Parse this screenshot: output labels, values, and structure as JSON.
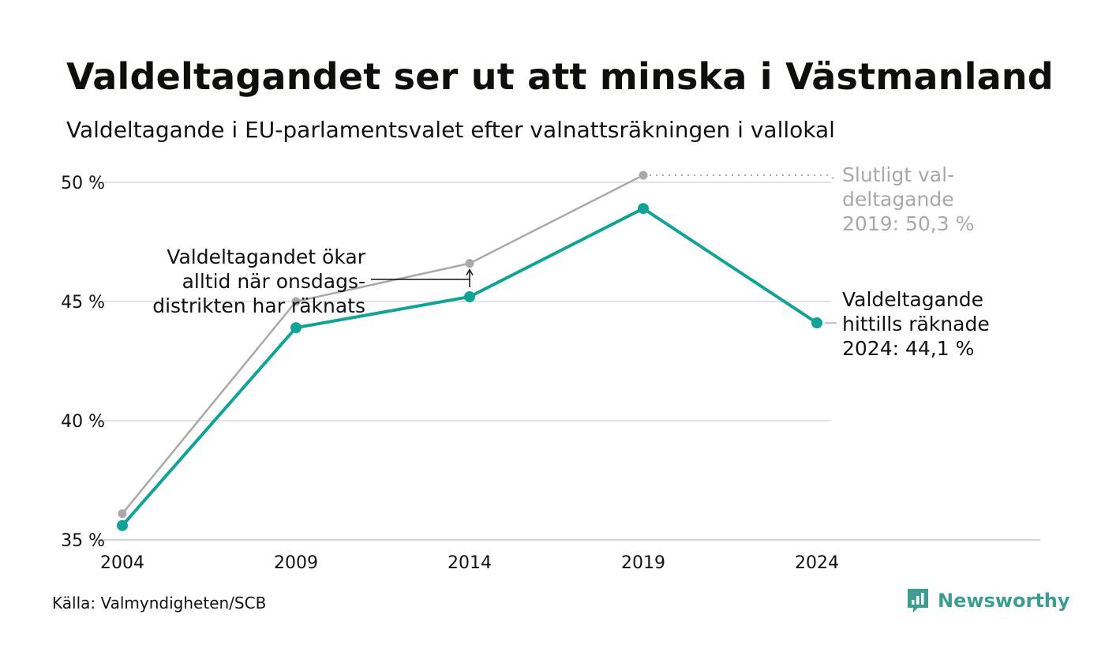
{
  "header": {
    "title": "Valdeltagandet ser ut att minska i Västmanland",
    "subtitle": "Valdeltagande i EU-parlamentsvalet efter valnattsräkningen i vallokal"
  },
  "chart_data": {
    "type": "line",
    "x": [
      2004,
      2009,
      2014,
      2019,
      2024
    ],
    "x_tick_labels": [
      "2004",
      "2009",
      "2014",
      "2019",
      "2024"
    ],
    "y_tick_labels": [
      "35 %",
      "40 %",
      "45 %",
      "50 %"
    ],
    "ylim": [
      35,
      50.5
    ],
    "grid": true,
    "series": [
      {
        "key": "final",
        "values": [
          36.1,
          45.0,
          46.6,
          50.3,
          null
        ],
        "color": "#a9a9a9"
      },
      {
        "key": "counted",
        "values": [
          35.6,
          43.9,
          45.2,
          48.9,
          44.1
        ],
        "color": "#11a397"
      }
    ],
    "annotations": {
      "final_2019": [
        "Slutligt val-",
        "deltagande",
        "2019: 50,3 %"
      ],
      "counted_2024": [
        "Valdeltagande",
        "hittills räknade",
        "2024: 44,1 %"
      ],
      "wednesday": [
        "Valdeltagandet ökar",
        "alltid när onsdags-",
        "distrikten har räknats"
      ]
    }
  },
  "footer": {
    "source": "Källa: Valmyndigheten/SCB",
    "brand": "Newsworthy",
    "brand_color": "#3c9e92",
    "brand_icon": "newsworthy-logo-icon"
  }
}
